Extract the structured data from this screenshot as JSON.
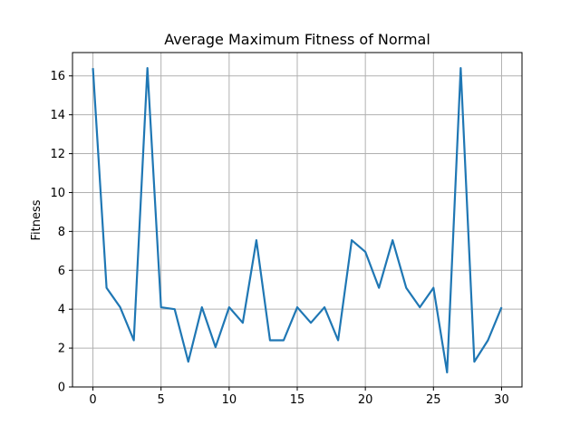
{
  "chart_data": {
    "type": "line",
    "title": "Average Maximum Fitness of Normal",
    "xlabel": "",
    "ylabel": "Fitness",
    "xlim": [
      -1.5,
      31.5
    ],
    "ylim": [
      0,
      17.2
    ],
    "grid": true,
    "x_ticks": [
      0,
      5,
      10,
      15,
      20,
      25,
      30
    ],
    "y_ticks": [
      0,
      2,
      4,
      6,
      8,
      10,
      12,
      14,
      16
    ],
    "series": [
      {
        "color": "#1f77b4",
        "x": [
          0,
          1,
          2,
          3,
          4,
          5,
          6,
          7,
          8,
          9,
          10,
          11,
          12,
          13,
          14,
          15,
          16,
          17,
          18,
          19,
          20,
          21,
          22,
          23,
          24,
          25,
          26,
          27,
          28,
          29,
          30
        ],
        "y": [
          16.4,
          5.1,
          4.1,
          2.4,
          16.4,
          4.1,
          4.0,
          1.3,
          4.1,
          2.05,
          4.1,
          3.3,
          7.55,
          2.4,
          2.4,
          4.1,
          3.3,
          4.1,
          2.4,
          7.55,
          6.95,
          5.1,
          7.55,
          5.1,
          4.1,
          5.1,
          0.75,
          16.4,
          1.3,
          2.4,
          4.1
        ]
      }
    ]
  }
}
